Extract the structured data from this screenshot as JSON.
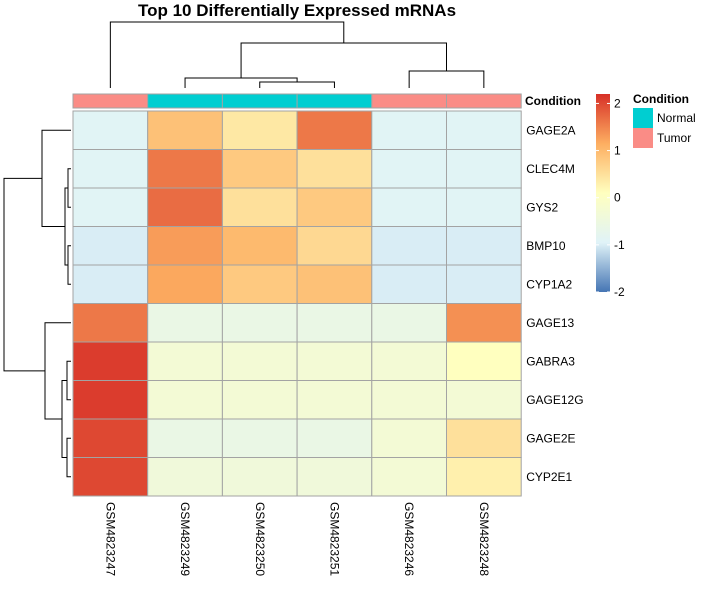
{
  "chart_data": {
    "type": "heatmap",
    "title": "Top 10 Differentially Expressed mRNAs",
    "columns": [
      "GSM4823247",
      "GSM4823249",
      "GSM4823250",
      "GSM4823251",
      "GSM4823246",
      "GSM4823248"
    ],
    "rows": [
      "GAGE2A",
      "CLEC4M",
      "GYS2",
      "BMP10",
      "CYP1A2",
      "GAGE13",
      "GABRA3",
      "GAGE12G",
      "GAGE2E",
      "CYP2E1"
    ],
    "values": [
      [
        -0.9,
        0.9,
        0.4,
        1.6,
        -0.9,
        -0.9
      ],
      [
        -0.9,
        1.6,
        0.8,
        0.5,
        -0.9,
        -0.9
      ],
      [
        -0.9,
        1.7,
        0.5,
        0.8,
        -0.9,
        -0.9
      ],
      [
        -1.0,
        1.3,
        1.0,
        0.6,
        -1.0,
        -1.0
      ],
      [
        -1.0,
        1.2,
        0.8,
        0.9,
        -1.0,
        -1.0
      ],
      [
        1.6,
        -0.6,
        -0.6,
        -0.6,
        -0.6,
        1.4
      ],
      [
        2.1,
        -0.3,
        -0.3,
        -0.3,
        -0.3,
        0.1
      ],
      [
        2.1,
        -0.3,
        -0.3,
        -0.3,
        -0.3,
        -0.3
      ],
      [
        2.0,
        -0.6,
        -0.6,
        -0.6,
        -0.3,
        0.5
      ],
      [
        2.0,
        -0.4,
        -0.4,
        -0.4,
        -0.3,
        0.3
      ]
    ],
    "annotation": {
      "label": "Condition",
      "values": [
        "Tumor",
        "Normal",
        "Normal",
        "Normal",
        "Tumor",
        "Tumor"
      ]
    },
    "color_legend": {
      "ticks": [
        2,
        1,
        0,
        -1,
        -2
      ],
      "range": [
        -2,
        2.2
      ],
      "colors": [
        "#4575b4",
        "#e0f3f8",
        "#ffffbf",
        "#fdae61",
        "#d73027"
      ]
    },
    "annotation_legend": {
      "title": "Condition",
      "items": [
        {
          "name": "Normal",
          "color": "#00ced1"
        },
        {
          "name": "Tumor",
          "color": "#fa8c86"
        }
      ]
    },
    "grid": true,
    "legend_position": "right"
  }
}
